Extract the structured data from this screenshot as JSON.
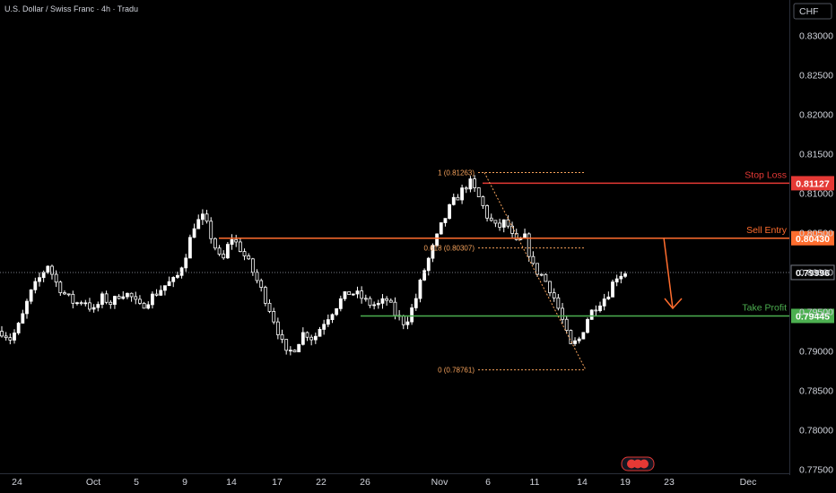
{
  "header": {
    "title": "U.S. Dollar / Swiss Franc · 4h · Tradu"
  },
  "currency_button": {
    "label": "CHF"
  },
  "colors": {
    "background": "#000000",
    "candle": "#ffffff",
    "stop_loss": "#e53935",
    "sell_entry": "#ff6d2e",
    "take_profit": "#4caf50",
    "fib": "#f7a35c",
    "axis_text": "#d1d4dc"
  },
  "chart_data": {
    "type": "candlestick",
    "ylim": [
      0.7745,
      0.8345
    ],
    "y_ticks": [
      "0.83000",
      "0.82500",
      "0.82000",
      "0.81500",
      "0.81000",
      "0.80500",
      "0.80000",
      "0.79500",
      "0.79000",
      "0.78500",
      "0.78000",
      "0.77500"
    ],
    "x_ticks": [
      "24",
      "Oct",
      "5",
      "9",
      "14",
      "17",
      "22",
      "26",
      "Nov",
      "6",
      "11",
      "14",
      "19",
      "23",
      "Dec"
    ],
    "levels": [
      {
        "name": "Stop Loss",
        "value": "0.81127"
      },
      {
        "name": "Sell Entry",
        "value": "0.80430"
      },
      {
        "name": "Take Profit",
        "value": "0.79445"
      }
    ],
    "current_price": "0.79996",
    "fib_labels": [
      "1 (0.81263)",
      "0.618 (0.80307)",
      "0 (0.78761)"
    ],
    "close_path": [
      0.7925,
      0.7915,
      0.7935,
      0.797,
      0.799,
      0.801,
      0.7985,
      0.797,
      0.796,
      0.7965,
      0.795,
      0.7968,
      0.796,
      0.7975,
      0.797,
      0.7955,
      0.7965,
      0.7975,
      0.7985,
      0.799,
      0.802,
      0.806,
      0.807,
      0.804,
      0.801,
      0.8045,
      0.803,
      0.801,
      0.7985,
      0.796,
      0.793,
      0.7895,
      0.7905,
      0.7925,
      0.7915,
      0.7935,
      0.795,
      0.7965,
      0.7975,
      0.797,
      0.796,
      0.7958,
      0.7965,
      0.7945,
      0.7935,
      0.796,
      0.8,
      0.803,
      0.806,
      0.8085,
      0.81,
      0.8115,
      0.8095,
      0.807,
      0.8055,
      0.8065,
      0.8035,
      0.8045,
      0.8005,
      0.7995,
      0.7975,
      0.7945,
      0.7905,
      0.7915,
      0.7945,
      0.796,
      0.797,
      0.7995,
      0.8
    ]
  }
}
